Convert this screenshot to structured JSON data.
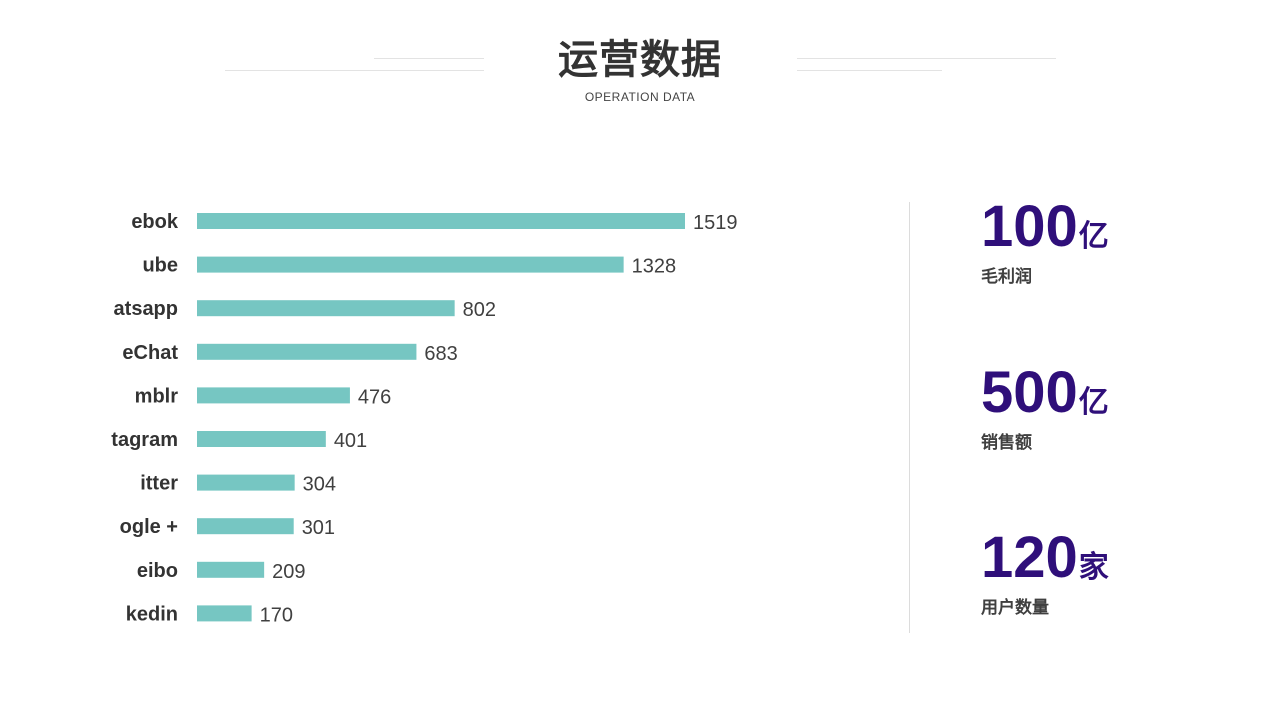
{
  "header": {
    "title": "运营数据",
    "subtitle": "OPERATION DATA"
  },
  "colors": {
    "bar": "#76c6c2",
    "accent": "#2f0f7a",
    "text": "#333333"
  },
  "chart_data": {
    "type": "bar",
    "orientation": "horizontal",
    "categories": [
      "ebok",
      "ube",
      "atsapp",
      "eChat",
      "mblr",
      "tagram",
      "itter",
      "ogle +",
      "eibo",
      "kedin"
    ],
    "values": [
      1519,
      1328,
      802,
      683,
      476,
      401,
      304,
      301,
      209,
      170
    ],
    "title": "",
    "xlabel": "",
    "ylabel": "",
    "grid": false,
    "legend": "none"
  },
  "stats": [
    {
      "value": "100",
      "unit": "亿",
      "label": "毛利润"
    },
    {
      "value": "500",
      "unit": "亿",
      "label": "销售额"
    },
    {
      "value": "120",
      "unit": "家",
      "label": "用户数量"
    }
  ]
}
